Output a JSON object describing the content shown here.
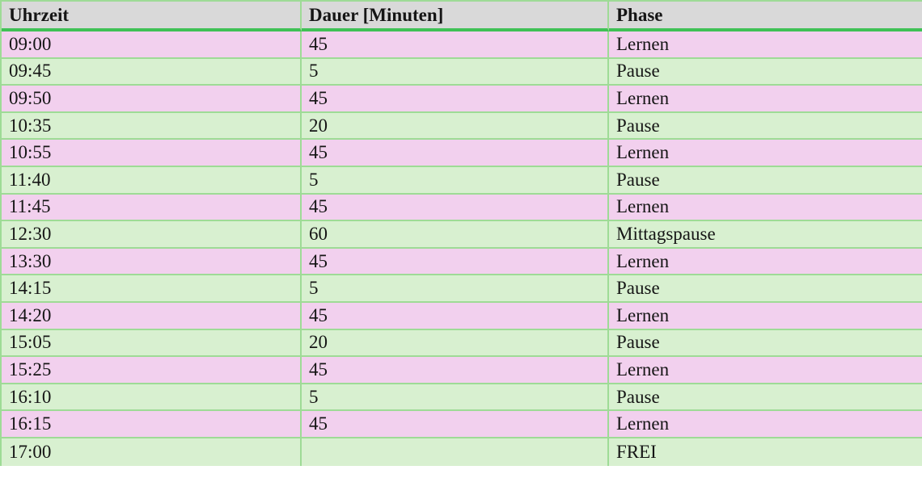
{
  "table": {
    "columns": [
      {
        "label": "Uhrzeit"
      },
      {
        "label": "Dauer [Minuten]"
      },
      {
        "label": "Phase"
      }
    ],
    "rows": [
      {
        "uhrzeit": "09:00",
        "dauer": "45",
        "phase": "Lernen"
      },
      {
        "uhrzeit": "09:45",
        "dauer": "5",
        "phase": "Pause"
      },
      {
        "uhrzeit": "09:50",
        "dauer": "45",
        "phase": "Lernen"
      },
      {
        "uhrzeit": "10:35",
        "dauer": "20",
        "phase": "Pause"
      },
      {
        "uhrzeit": "10:55",
        "dauer": "45",
        "phase": "Lernen"
      },
      {
        "uhrzeit": "11:40",
        "dauer": "5",
        "phase": "Pause"
      },
      {
        "uhrzeit": "11:45",
        "dauer": "45",
        "phase": "Lernen"
      },
      {
        "uhrzeit": "12:30",
        "dauer": "60",
        "phase": "Mittagspause"
      },
      {
        "uhrzeit": "13:30",
        "dauer": "45",
        "phase": "Lernen"
      },
      {
        "uhrzeit": "14:15",
        "dauer": "5",
        "phase": "Pause"
      },
      {
        "uhrzeit": "14:20",
        "dauer": "45",
        "phase": "Lernen"
      },
      {
        "uhrzeit": "15:05",
        "dauer": "20",
        "phase": "Pause"
      },
      {
        "uhrzeit": "15:25",
        "dauer": "45",
        "phase": "Lernen"
      },
      {
        "uhrzeit": "16:10",
        "dauer": "5",
        "phase": "Pause"
      },
      {
        "uhrzeit": "16:15",
        "dauer": "45",
        "phase": "Lernen"
      },
      {
        "uhrzeit": "17:00",
        "dauer": "",
        "phase": "FREI"
      }
    ]
  },
  "colors": {
    "header_bg": "#d9d9d9",
    "row_pink": "#f2d0ee",
    "row_green": "#d8f0d0",
    "rule_green": "#3fc155",
    "grid_green": "#9edb96",
    "text_color": "#151515",
    "page_bg": "#ffffff"
  }
}
